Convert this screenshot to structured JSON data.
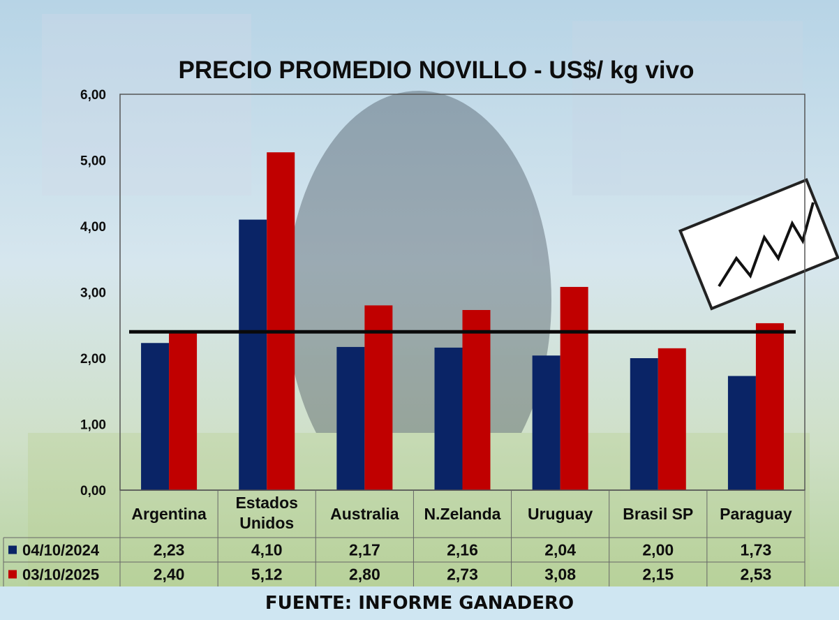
{
  "chart_data": {
    "type": "bar",
    "title": "PRECIO PROMEDIO NOVILLO  - US$/ kg vivo",
    "categories": [
      [
        "Argentina"
      ],
      [
        "Estados",
        "Unidos"
      ],
      [
        "Australia"
      ],
      [
        "N.Zelanda"
      ],
      [
        "Uruguay"
      ],
      [
        "Brasil SP"
      ],
      [
        "Paraguay"
      ]
    ],
    "series": [
      {
        "name": "04/10/2024",
        "color": "#0a2466",
        "values": [
          2.23,
          4.1,
          2.17,
          2.16,
          2.04,
          2.0,
          1.73
        ],
        "labels": [
          "2,23",
          "4,10",
          "2,17",
          "2,16",
          "2,04",
          "2,00",
          "1,73"
        ]
      },
      {
        "name": "03/10/2025",
        "color": "#c00000",
        "values": [
          2.4,
          5.12,
          2.8,
          2.73,
          3.08,
          2.15,
          2.53
        ],
        "labels": [
          "2,40",
          "5,12",
          "2,80",
          "2,73",
          "3,08",
          "2,15",
          "2,53"
        ]
      }
    ],
    "ylim": [
      0,
      6
    ],
    "yticks": [
      0,
      1,
      2,
      3,
      4,
      5,
      6
    ],
    "ytick_labels": [
      "0,00",
      "1,00",
      "2,00",
      "3,00",
      "4,00",
      "5,00",
      "6,00"
    ],
    "average_line_value": 2.4,
    "grid": false,
    "legend": "data-table-left"
  },
  "footer": {
    "source": "FUENTE: INFORME GANADERO"
  }
}
